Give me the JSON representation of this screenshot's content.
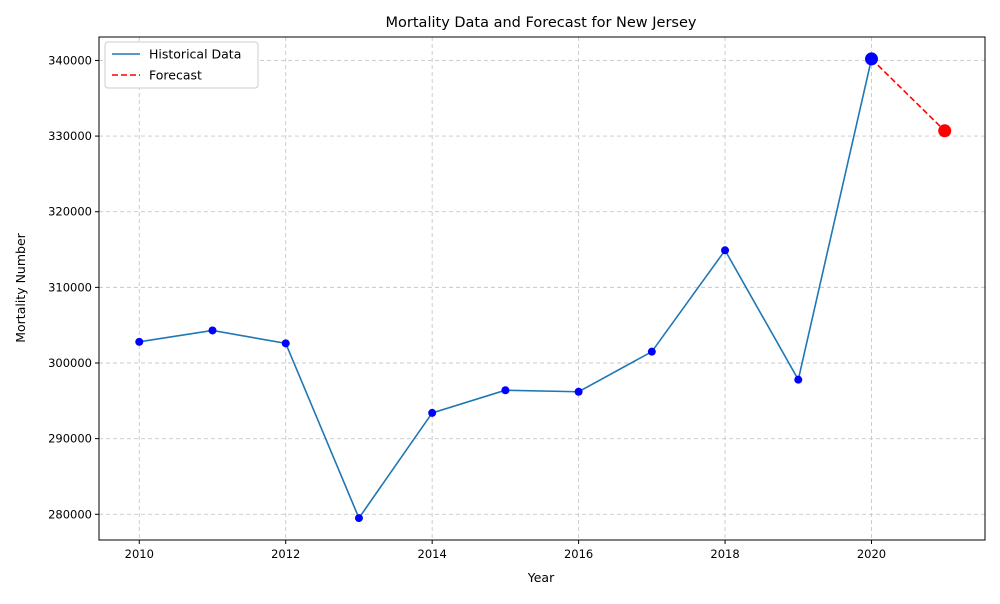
{
  "chart_data": {
    "type": "line",
    "title": "Mortality Data and Forecast for New Jersey",
    "xlabel": "Year",
    "ylabel": "Mortality Number",
    "xlim": [
      2009.45,
      2021.55
    ],
    "ylim": [
      276600,
      343100
    ],
    "x_ticks": [
      2010,
      2012,
      2014,
      2016,
      2018,
      2020
    ],
    "y_ticks": [
      280000,
      290000,
      300000,
      310000,
      320000,
      330000,
      340000
    ],
    "grid": true,
    "legend_position": "top-left",
    "series": [
      {
        "name": "Historical Data",
        "color": "#1f77b4",
        "marker_color": "#0000ff",
        "style": "solid",
        "x": [
          2010,
          2011,
          2012,
          2013,
          2014,
          2015,
          2016,
          2017,
          2018,
          2019,
          2020
        ],
        "values": [
          302800,
          304300,
          302600,
          279500,
          293400,
          296400,
          296200,
          301500,
          314900,
          297800,
          340200
        ]
      },
      {
        "name": "Forecast",
        "color": "#ff0000",
        "marker_color": "#ff0000",
        "style": "dashed",
        "x": [
          2020,
          2021
        ],
        "values": [
          340200,
          330700
        ]
      }
    ]
  }
}
